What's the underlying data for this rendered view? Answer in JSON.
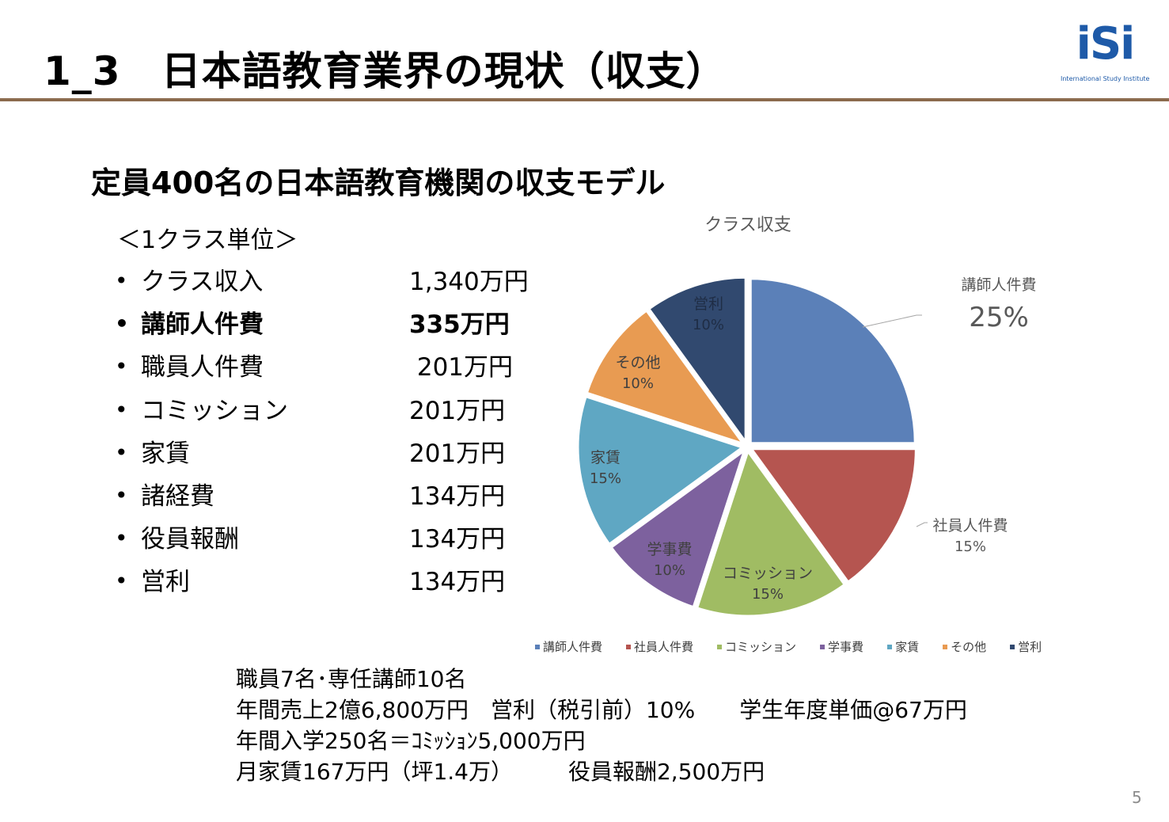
{
  "header": {
    "title": "1_3　日本語教育業界の現状（収支）",
    "logo_text": "iSi",
    "logo_subtext": "International Study Institute"
  },
  "subtitle": "定員400名の日本語教育機関の収支モデル",
  "unit_label": "＜1クラス単位＞",
  "items": [
    {
      "label": "クラス収入",
      "value": "1,340万円",
      "bold": false
    },
    {
      "label": "講師人件費",
      "value": "335万円",
      "bold": true
    },
    {
      "label": "職員人件費",
      "value": " 201万円",
      "bold": false
    },
    {
      "label": "コミッション",
      "value": "201万円",
      "bold": false
    },
    {
      "label": "家賃",
      "value": "201万円",
      "bold": false
    },
    {
      "label": "諸経費",
      "value": "134万円",
      "bold": false
    },
    {
      "label": "役員報酬",
      "value": "134万円",
      "bold": false
    },
    {
      "label": "営利",
      "value": "134万円",
      "bold": false
    }
  ],
  "chart_data": {
    "type": "pie",
    "title": "クラス収支",
    "slices": [
      {
        "name": "講師人件費",
        "value": 25,
        "label": "25%",
        "color": "#5b80b8"
      },
      {
        "name": "社員人件費",
        "value": 15,
        "label": "15%",
        "color": "#b55550"
      },
      {
        "name": "コミッション",
        "value": 15,
        "label": "15%",
        "color": "#a0bc63"
      },
      {
        "name": "学事費",
        "value": 10,
        "label": "10%",
        "color": "#7d619e"
      },
      {
        "name": "家賃",
        "value": 15,
        "label": "15%",
        "color": "#5fa7c3"
      },
      {
        "name": "その他",
        "value": 10,
        "label": "10%",
        "color": "#e89b52"
      },
      {
        "name": "営利",
        "value": 10,
        "label": "10%",
        "color": "#31496f"
      }
    ],
    "legend_position": "bottom"
  },
  "notes": [
    "職員7名･専任講師10名",
    "年間売上2億6,800万円　営利（税引前）10%　　学生年度単価@67万円",
    "年間入学250名＝ｺﾐｯｼｮﾝ5,000万円",
    "月家賃167万円（坪1.4万）　　　役員報酬2,500万円"
  ],
  "page_number": "5"
}
